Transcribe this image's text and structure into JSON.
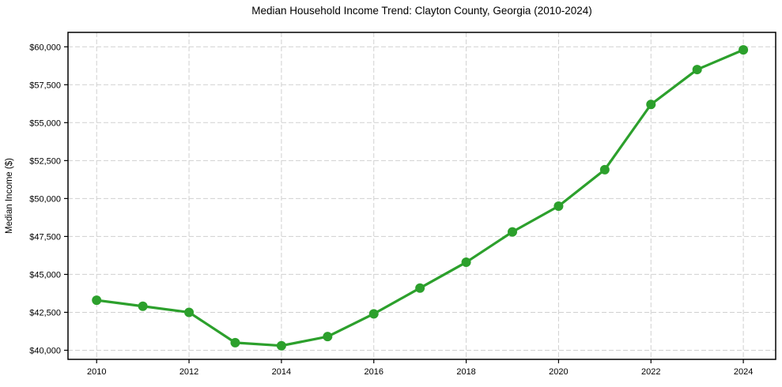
{
  "chart_data": {
    "type": "line",
    "title": "Median Household Income Trend: Clayton County, Georgia (2010-2024)",
    "xlabel": "",
    "ylabel": "Median Income ($)",
    "x": [
      2010,
      2011,
      2012,
      2013,
      2014,
      2015,
      2016,
      2017,
      2018,
      2019,
      2020,
      2021,
      2022,
      2023,
      2024
    ],
    "series": [
      {
        "name": "Median Household Income",
        "values": [
          43300,
          42900,
          42500,
          40500,
          40300,
          40900,
          42400,
          44100,
          45800,
          47800,
          49500,
          51900,
          56200,
          58500,
          59800
        ],
        "color": "#2ca02c",
        "marker": "circle"
      }
    ],
    "x_ticks": [
      2010,
      2012,
      2014,
      2016,
      2018,
      2020,
      2022,
      2024
    ],
    "x_tick_labels": [
      "2010",
      "2012",
      "2014",
      "2016",
      "2018",
      "2020",
      "2022",
      "2024"
    ],
    "y_ticks": [
      40000,
      42500,
      45000,
      47500,
      50000,
      52500,
      55000,
      57500,
      60000
    ],
    "y_tick_labels": [
      "$40,000",
      "$42,500",
      "$45,000",
      "$47,500",
      "$50,000",
      "$52,500",
      "$55,000",
      "$57,500",
      "$60,000"
    ],
    "xlim": [
      2009.38,
      2024.7
    ],
    "ylim": [
      39400,
      60950
    ],
    "grid": true,
    "grid_style": "dashed",
    "legend_position": "none",
    "colors": {
      "line": "#2ca02c",
      "grid": "#d0d0d0",
      "spine": "#000000",
      "text": "#000000",
      "background": "#ffffff"
    }
  }
}
